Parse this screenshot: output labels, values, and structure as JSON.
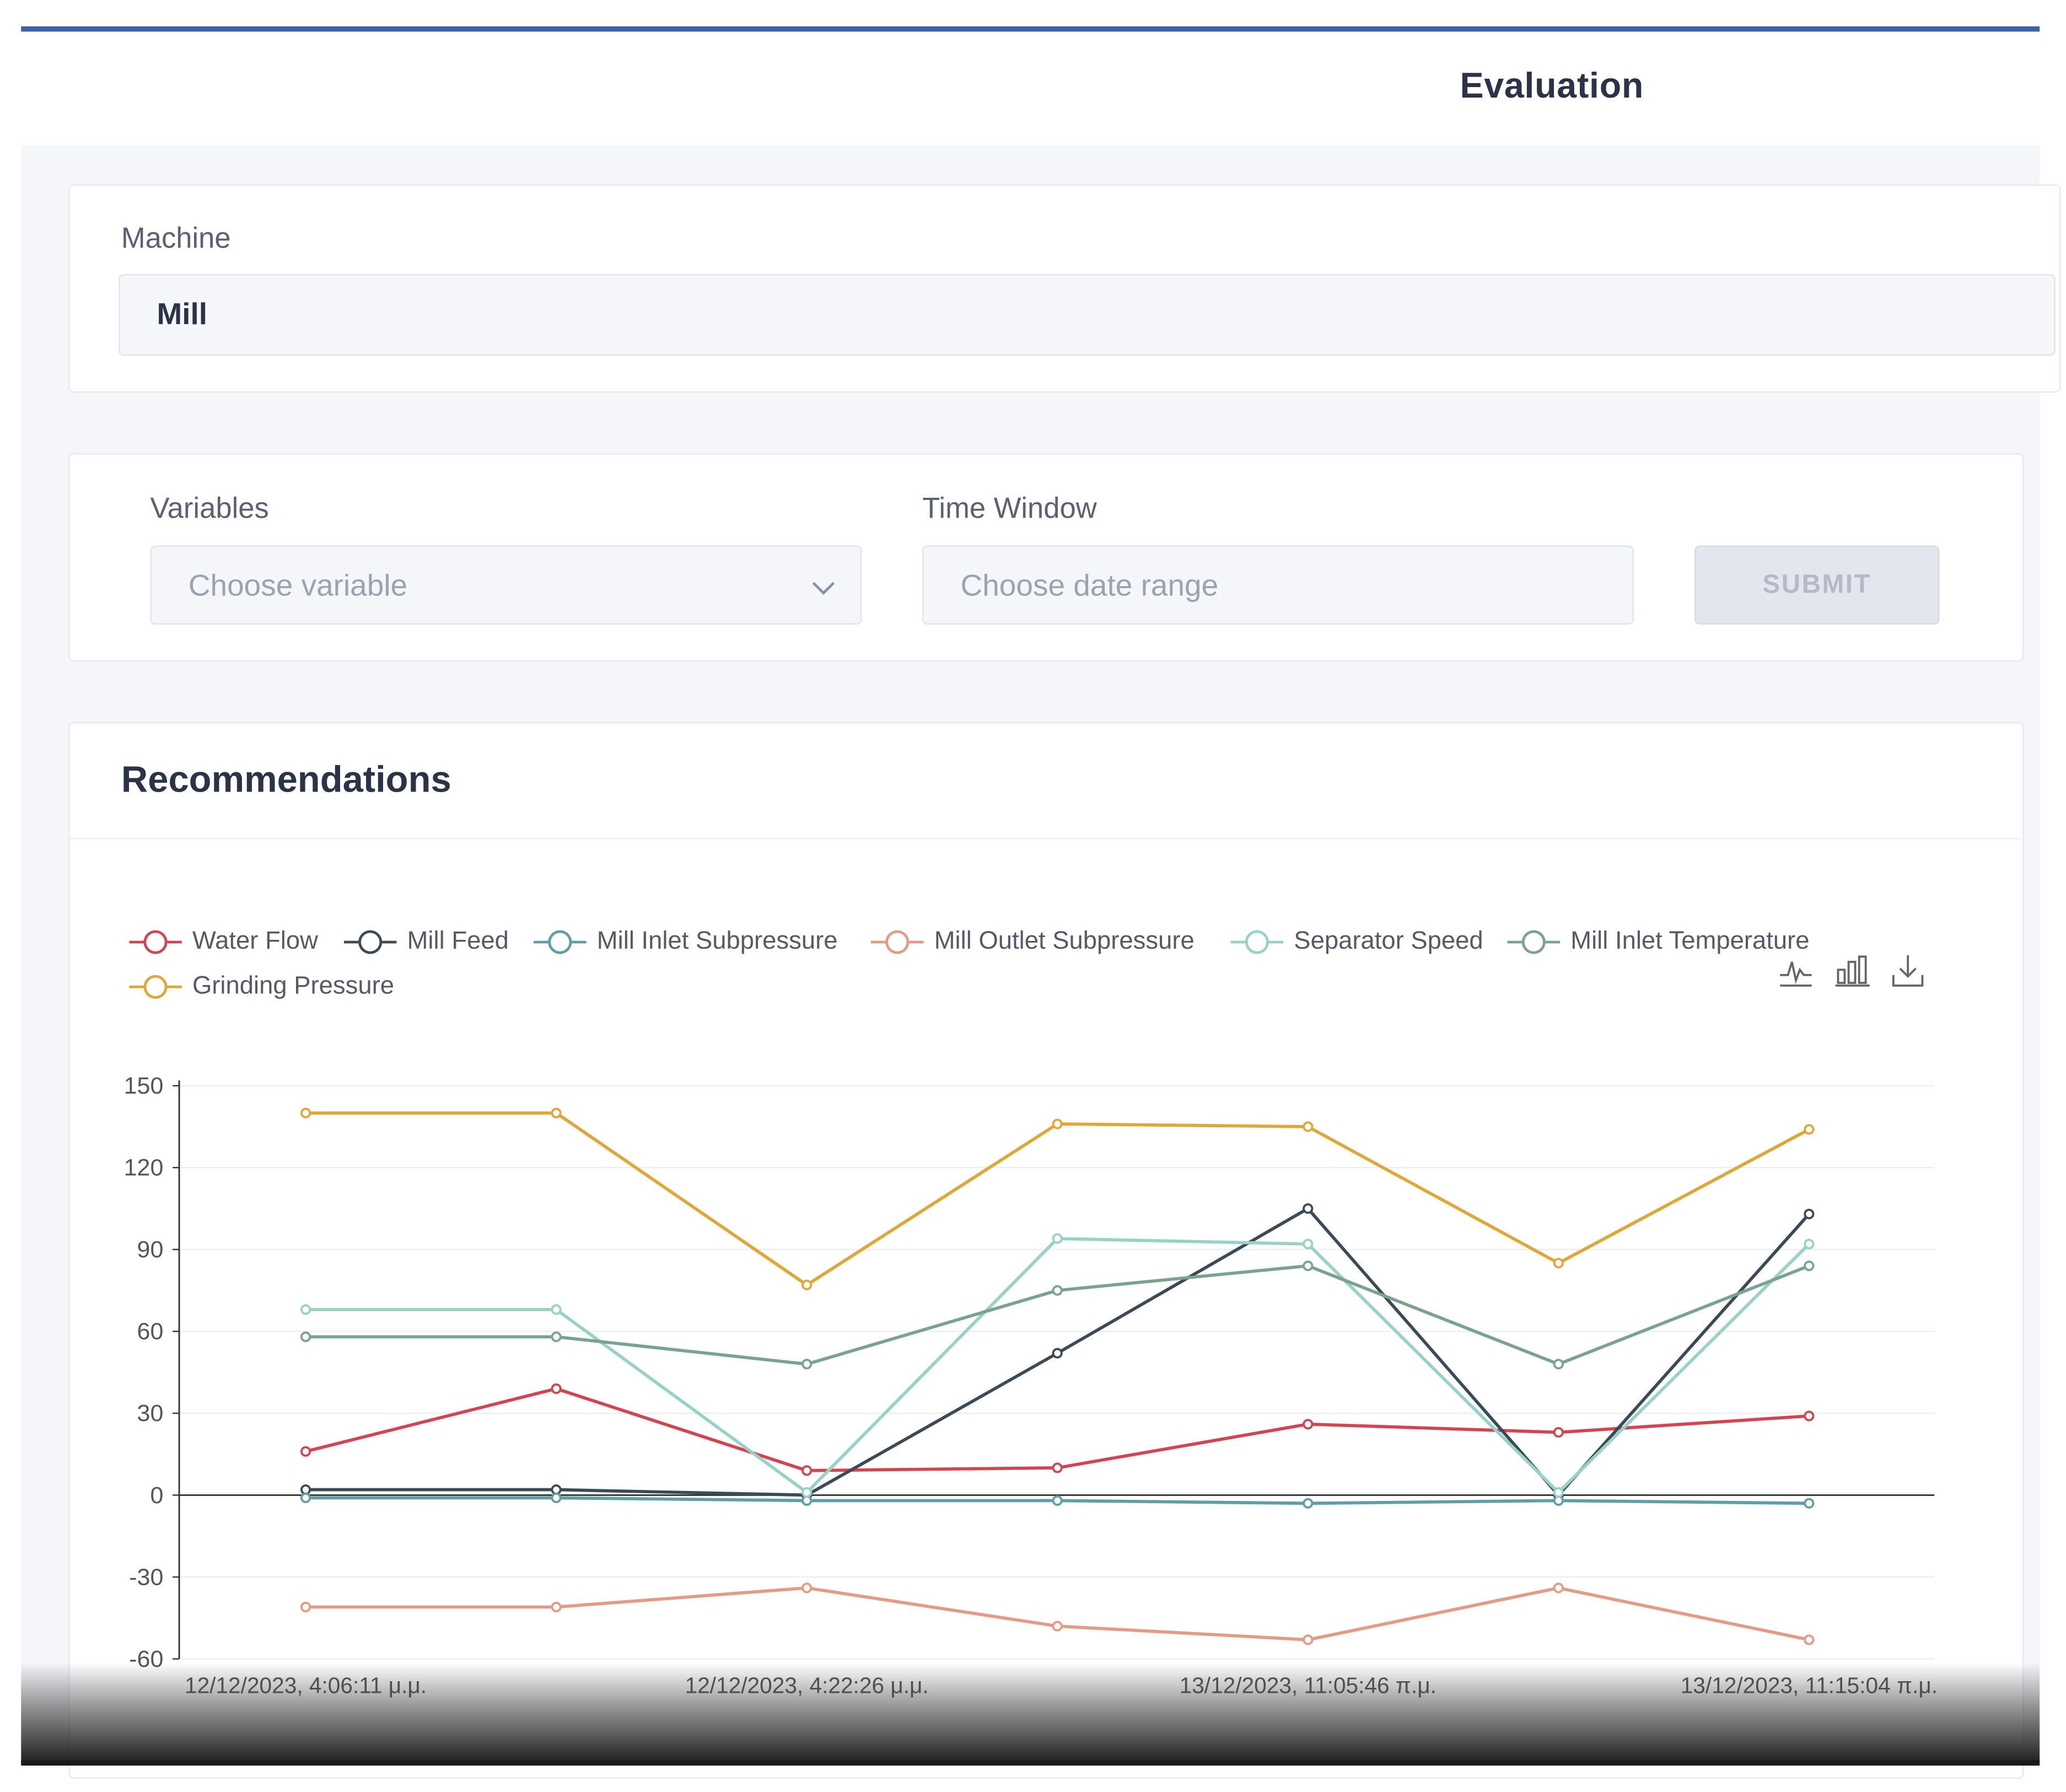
{
  "page": {
    "title": "Evaluation"
  },
  "machine": {
    "label": "Machine",
    "value": "Mill"
  },
  "filters": {
    "variables_label": "Variables",
    "variables_placeholder": "Choose variable",
    "time_window_label": "Time Window",
    "time_window_placeholder": "Choose date range",
    "submit_label": "SUBMIT"
  },
  "recommendations": {
    "title": "Recommendations"
  },
  "toolbox": {
    "icons": [
      "line-chart-icon",
      "bar-chart-icon",
      "download-icon"
    ]
  },
  "chart_data": {
    "type": "line",
    "title": "",
    "xlabel": "",
    "ylabel": "",
    "ylim": [
      -60,
      150
    ],
    "yticks": [
      150,
      120,
      90,
      60,
      30,
      0,
      -30,
      -60
    ],
    "grid": true,
    "legend": "top-left",
    "x": [
      "12/12/2023, 4:06:11 μ.μ.",
      "",
      "12/12/2023, 4:22:26 μ.μ.",
      "",
      "13/12/2023, 11:05:46 π.μ.",
      "",
      "13/12/2023, 11:15:04 π.μ."
    ],
    "series": [
      {
        "name": "Water Flow",
        "color": "#d4444f",
        "values": [
          16,
          39,
          9,
          10,
          26,
          23,
          29
        ]
      },
      {
        "name": "Mill Feed",
        "color": "#3b4a57",
        "values": [
          2,
          2,
          0,
          52,
          105,
          0,
          103
        ]
      },
      {
        "name": "Mill Inlet Subpressure",
        "color": "#5f9ea7",
        "values": [
          -1,
          -1,
          -2,
          -2,
          -3,
          -2,
          -3
        ]
      },
      {
        "name": "Mill Outlet Subpressure",
        "color": "#e59a82",
        "values": [
          -41,
          -41,
          -34,
          -48,
          -53,
          -34,
          -53
        ]
      },
      {
        "name": "Separator Speed",
        "color": "#96d2c5",
        "values": [
          68,
          68,
          1,
          94,
          92,
          1,
          92
        ]
      },
      {
        "name": "Mill Inlet Temperature",
        "color": "#7aa38f",
        "values": [
          58,
          58,
          48,
          75,
          84,
          48,
          84
        ]
      },
      {
        "name": "Grinding Pressure",
        "color": "#e2a636",
        "values": [
          140,
          140,
          77,
          136,
          135,
          85,
          134
        ]
      }
    ]
  }
}
